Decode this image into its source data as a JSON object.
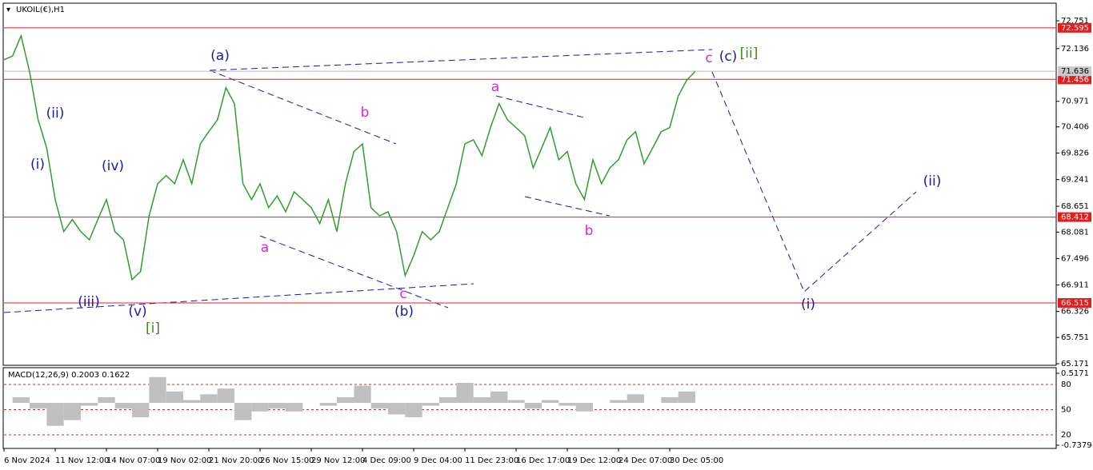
{
  "chart_data": [
    {
      "type": "line",
      "title": "UKOIL(€),H1",
      "color": "#2f9e2f",
      "categories": [
        "6 Nov 2024",
        null,
        null,
        null,
        null,
        null,
        "11 Nov 12:00",
        null,
        null,
        null,
        null,
        null,
        "14 Nov 07:00",
        null,
        null,
        null,
        null,
        null,
        "19 Nov 02:00",
        null,
        null,
        null,
        null,
        null,
        "21 Nov 20:00",
        null,
        null,
        null,
        null,
        null,
        "26 Nov 15:00",
        null,
        null,
        null,
        null,
        null,
        "29 Nov 12:00",
        null,
        null,
        null,
        null,
        null,
        "4 Dec 09:00",
        null,
        null,
        null,
        null,
        null,
        "9 Dec 04:00",
        null,
        null,
        null,
        null,
        null,
        "11 Dec 23:00",
        null,
        null,
        null,
        null,
        null,
        "16 Dec 17:00",
        null,
        null,
        null,
        null,
        null,
        "19 Dec 12:00",
        null,
        null,
        null,
        null,
        null,
        "24 Dec 07:00",
        null,
        null,
        null,
        null,
        null,
        "30 Dec 05:00",
        null,
        null,
        null
      ],
      "values": [
        71.89,
        71.97,
        72.42,
        71.62,
        70.56,
        69.94,
        68.8,
        68.09,
        68.36,
        68.09,
        67.91,
        68.36,
        68.8,
        68.09,
        67.91,
        67.03,
        67.21,
        68.44,
        69.15,
        69.33,
        69.15,
        69.68,
        69.15,
        70.03,
        70.3,
        70.56,
        71.27,
        70.92,
        69.15,
        68.8,
        69.15,
        68.62,
        68.88,
        68.53,
        68.97,
        68.8,
        68.62,
        68.27,
        68.8,
        68.09,
        69.15,
        69.86,
        70.03,
        68.62,
        68.44,
        68.53,
        68.09,
        67.12,
        67.56,
        68.09,
        67.91,
        68.09,
        68.62,
        69.15,
        70.03,
        70.12,
        69.77,
        70.39,
        70.92,
        70.56,
        70.39,
        70.21,
        69.5,
        69.94,
        70.39,
        69.68,
        69.86,
        69.15,
        68.8,
        69.68,
        69.15,
        69.5,
        69.68,
        70.12,
        70.3,
        69.59,
        69.94,
        70.3,
        70.39,
        71.09,
        71.44,
        71.636
      ],
      "ylim": [
        65.136,
        73.122
      ],
      "yticks": [
        72.751,
        72.136,
        70.971,
        70.406,
        69.826,
        69.241,
        68.651,
        68.081,
        67.496,
        66.911,
        66.326,
        65.751,
        65.171
      ],
      "levels": [
        72.595,
        71.456,
        68.412,
        66.515
      ],
      "level_color": "#e02020",
      "last_price": 71.636,
      "annotations": [
        {
          "text": "(a)",
          "color": "#1a1aa6"
        },
        {
          "text": "(i)",
          "color": "#1a1aa6"
        },
        {
          "text": "(ii)",
          "color": "#1a1aa6"
        },
        {
          "text": "(iv)",
          "color": "#1a1aa6"
        },
        {
          "text": "(iii)",
          "color": "#1a1aa6"
        },
        {
          "text": "(v)",
          "color": "#1a1aa6"
        },
        {
          "text": "[i]",
          "color": "#3a8a1a"
        },
        {
          "text": "a",
          "color": "#e020e0"
        },
        {
          "text": "b",
          "color": "#e020e0"
        },
        {
          "text": "c",
          "color": "#e020e0"
        },
        {
          "text": "(b)",
          "color": "#1a1aa6"
        },
        {
          "text": "a",
          "color": "#e020e0"
        },
        {
          "text": "b",
          "color": "#e020e0"
        },
        {
          "text": "c",
          "color": "#e020e0"
        },
        {
          "text": "(c)",
          "color": "#1a1aa6"
        },
        {
          "text": "[ii]",
          "color": "#3a8a1a"
        },
        {
          "text": "(i)",
          "color": "#1a1aa6"
        },
        {
          "text": "(ii)",
          "color": "#1a1aa6"
        }
      ]
    },
    {
      "type": "bar",
      "title": "MACD(12,26,9) 0.2003 0.1622",
      "color": "#c0c0c0",
      "values": [
        0.0,
        0.1,
        -0.1,
        -0.4,
        -0.3,
        -0.05,
        0.1,
        -0.1,
        -0.25,
        0.45,
        0.2,
        0.05,
        0.15,
        0.25,
        -0.3,
        -0.15,
        -0.1,
        -0.15,
        0.0,
        -0.05,
        0.1,
        0.3,
        -0.1,
        -0.2,
        -0.25,
        -0.05,
        0.1,
        0.35,
        0.1,
        0.2,
        0.05,
        -0.1,
        0.05,
        -0.05,
        -0.15,
        0.0,
        0.05,
        0.15,
        0.0,
        0.1,
        0.2
      ],
      "ylim": [
        -0.78,
        0.6
      ],
      "yticks": [
        0.5171,
        -0.7379
      ],
      "y2lim": [
        0,
        100
      ],
      "y2ticks": [
        20,
        50,
        80
      ],
      "level_color": "#e02020"
    }
  ]
}
